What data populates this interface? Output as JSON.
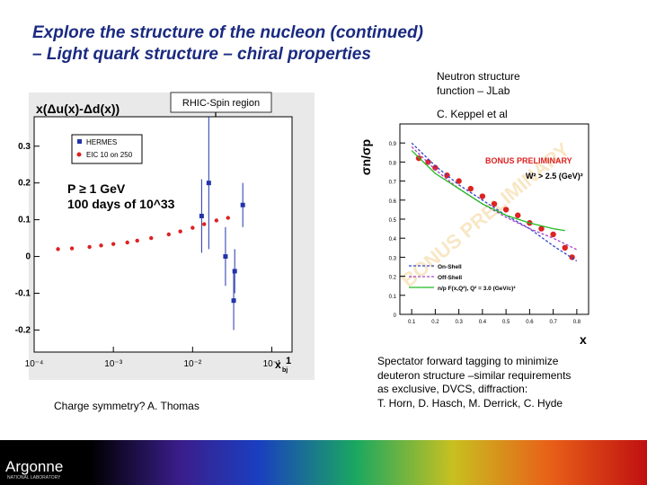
{
  "title": [
    "Explore the structure of the nucleon (continued)",
    " – Light quark structure – chiral properties"
  ],
  "callout": "RHIC-Spin region",
  "left_caption": "Charge symmetry?  A. Thomas",
  "right_header": [
    "Neutron structure",
    "function – JLab"
  ],
  "right_credit": "C. Keppel et al",
  "right_caption": [
    "Spectator forward tagging to minimize",
    "deuteron structure –similar requirements",
    "as exclusive, DVCS, diffraction:",
    "T. Horn, D. Hasch, M. Derrick, C. Hyde"
  ],
  "footer": {
    "logo": "Argonne",
    "logo_sub": "NATIONAL LABORATORY"
  },
  "chart_data": [
    {
      "type": "scatter",
      "title": "x(Δu(x)-Δd(x))",
      "x_label": "x",
      "x_label_sub": "bj",
      "x_edge_label": "1",
      "xlog": true,
      "xlim": [
        0.0001,
        0.18
      ],
      "xticks": [
        {
          "value": 0.0001,
          "label": "10⁻⁴"
        },
        {
          "value": 0.001,
          "label": "10⁻³"
        },
        {
          "value": 0.01,
          "label": "10⁻²"
        },
        {
          "value": 0.1,
          "label": "10⁻¹"
        }
      ],
      "ylim": [
        -0.26,
        0.38
      ],
      "yticks": [
        -0.2,
        -0.1,
        0,
        0.1,
        0.2,
        0.3
      ],
      "annotations": [
        "P ≥ 1 GeV",
        "100 days of 10^33"
      ],
      "legend": "upper left",
      "series": [
        {
          "name": "HERMES",
          "color": "#2233aa",
          "marker": "square",
          "x": [
            0.013,
            0.016,
            0.026,
            0.034,
            0.043,
            0.033
          ],
          "values": [
            0.11,
            0.2,
            0.0,
            -0.04,
            0.14,
            -0.12
          ],
          "errors": [
            0.1,
            0.18,
            0.08,
            0.06,
            0.06,
            0.08
          ]
        },
        {
          "name": "EIC 10 on 250",
          "color": "#dd2222",
          "marker": "circle",
          "x": [
            0.0002,
            0.0003,
            0.0005,
            0.0007,
            0.001,
            0.0015,
            0.002,
            0.003,
            0.005,
            0.007,
            0.01,
            0.014,
            0.02,
            0.028
          ],
          "values": [
            0.02,
            0.022,
            0.026,
            0.03,
            0.034,
            0.038,
            0.043,
            0.05,
            0.06,
            0.068,
            0.078,
            0.088,
            0.098,
            0.105
          ]
        }
      ]
    },
    {
      "type": "scatter",
      "title": "σn/σp",
      "x_label": "x",
      "xlim": [
        0.05,
        0.85
      ],
      "xticks": [
        0.1,
        0.2,
        0.3,
        0.4,
        0.5,
        0.6,
        0.7,
        0.8
      ],
      "ylim": [
        0,
        1.0
      ],
      "yticks": [
        0,
        0.1,
        0.2,
        0.3,
        0.4,
        0.5,
        0.6,
        0.7,
        0.8,
        0.9
      ],
      "annotations": [
        "BONUS PRELIMINARY",
        "W² > 2.5 (GeV)²"
      ],
      "watermark": "BONUS PRELIMINARY",
      "legend": "lower left",
      "series": [
        {
          "color": "#dd2222",
          "marker": "circle",
          "x": [
            0.13,
            0.17,
            0.2,
            0.25,
            0.3,
            0.35,
            0.4,
            0.45,
            0.5,
            0.55,
            0.6,
            0.65,
            0.7,
            0.75,
            0.78
          ],
          "values": [
            0.82,
            0.8,
            0.77,
            0.73,
            0.7,
            0.66,
            0.62,
            0.58,
            0.55,
            0.52,
            0.48,
            0.45,
            0.42,
            0.35,
            0.3
          ]
        },
        {
          "name": "On-Shell",
          "color": "#3344cc",
          "marker": "line",
          "dash": true,
          "x": [
            0.1,
            0.2,
            0.3,
            0.4,
            0.5,
            0.6,
            0.7,
            0.8
          ],
          "values": [
            0.9,
            0.78,
            0.68,
            0.6,
            0.52,
            0.45,
            0.36,
            0.28
          ]
        },
        {
          "name": "Off-Shell",
          "color": "#aa44cc",
          "marker": "line",
          "dash": true,
          "x": [
            0.1,
            0.2,
            0.3,
            0.4,
            0.5,
            0.6,
            0.7,
            0.8
          ],
          "values": [
            0.88,
            0.76,
            0.66,
            0.58,
            0.51,
            0.45,
            0.4,
            0.34
          ]
        },
        {
          "name": "n/p F(x,Q²), Q² = 3.0 (GeV/c)²",
          "color": "#22bb22",
          "marker": "line",
          "x": [
            0.1,
            0.2,
            0.3,
            0.4,
            0.5,
            0.6,
            0.7,
            0.75
          ],
          "values": [
            0.86,
            0.74,
            0.66,
            0.58,
            0.52,
            0.48,
            0.45,
            0.44
          ]
        }
      ]
    }
  ]
}
